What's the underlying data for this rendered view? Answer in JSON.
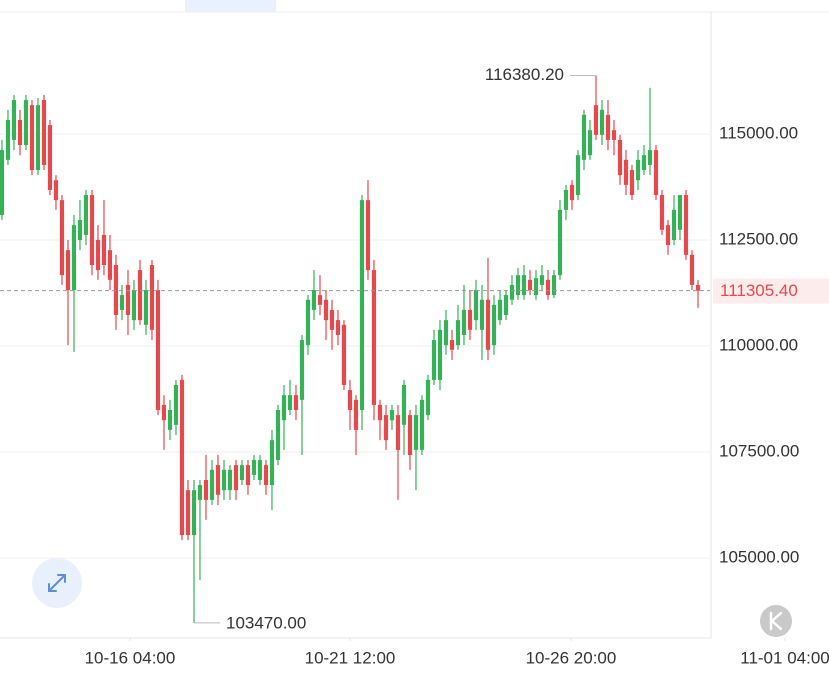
{
  "chart_data": {
    "type": "candlestick",
    "up_color": "#35b158",
    "down_color": "#e5484d",
    "ylim": [
      103113,
      117877
    ],
    "yticks": [
      {
        "value": 105000,
        "label": "105000.00"
      },
      {
        "value": 107500,
        "label": "107500.00"
      },
      {
        "value": 110000,
        "label": "110000.00"
      },
      {
        "value": 112500,
        "label": "112500.00"
      },
      {
        "value": 115000,
        "label": "115000.00"
      }
    ],
    "xlim": [
      -0.33,
      118
    ],
    "xticks": [
      {
        "value": 21.33,
        "label": "10-16 04:00"
      },
      {
        "value": 58,
        "label": "10-21 12:00"
      },
      {
        "value": 94.83,
        "label": "10-26 20:00"
      },
      {
        "value": 130.5,
        "label": "11-01 04:00"
      }
    ],
    "grid": true,
    "max_label": {
      "value": 116380.2,
      "label": "116380.20"
    },
    "min_label": {
      "value": 103470,
      "label": "103470.00"
    },
    "last_price": {
      "value": 111305.4,
      "label": "111305.40"
    },
    "ohlc": [
      [
        113090,
        114860,
        112970,
        114620
      ],
      [
        114390,
        115570,
        114270,
        115330
      ],
      [
        114860,
        115920,
        114620,
        115800
      ],
      [
        115330,
        115570,
        114500,
        114740
      ],
      [
        114740,
        115920,
        114620,
        115800
      ],
      [
        115680,
        115800,
        114030,
        114150
      ],
      [
        114150,
        115850,
        114030,
        115680
      ],
      [
        115800,
        115920,
        114150,
        114270
      ],
      [
        115210,
        115330,
        113560,
        113680
      ],
      [
        113910,
        114030,
        113210,
        113440
      ],
      [
        113440,
        113560,
        111440,
        111670
      ],
      [
        112260,
        112500,
        110020,
        111320
      ],
      [
        111320,
        113090,
        109860,
        112850
      ],
      [
        112500,
        113440,
        112260,
        112970
      ],
      [
        112620,
        113680,
        112380,
        113560
      ],
      [
        113560,
        113680,
        111670,
        111910
      ],
      [
        112500,
        112850,
        111560,
        111790
      ],
      [
        112620,
        113440,
        111670,
        111910
      ],
      [
        112260,
        112620,
        111320,
        111560
      ],
      [
        111910,
        112150,
        110380,
        110730
      ],
      [
        110850,
        111440,
        110610,
        111200
      ],
      [
        111440,
        111790,
        110260,
        110730
      ],
      [
        110610,
        111560,
        110380,
        111320
      ],
      [
        111790,
        112030,
        110500,
        110610
      ],
      [
        110500,
        111560,
        110260,
        111320
      ],
      [
        111910,
        112030,
        110140,
        110380
      ],
      [
        111320,
        111560,
        108370,
        108490
      ],
      [
        108610,
        108840,
        107550,
        108250
      ],
      [
        108020,
        108730,
        107780,
        108490
      ],
      [
        108140,
        109200,
        107900,
        109080
      ],
      [
        109200,
        109320,
        105420,
        105540
      ],
      [
        106600,
        106840,
        105420,
        105540
      ],
      [
        105540,
        106840,
        103470,
        106600
      ],
      [
        106370,
        106840,
        104480,
        106720
      ],
      [
        106840,
        107430,
        105900,
        106370
      ],
      [
        106370,
        107310,
        106250,
        107080
      ],
      [
        107190,
        107430,
        106250,
        106490
      ],
      [
        106600,
        107310,
        106370,
        107080
      ],
      [
        106600,
        107190,
        106370,
        107080
      ],
      [
        107190,
        107310,
        106370,
        106600
      ],
      [
        106840,
        107310,
        106720,
        107190
      ],
      [
        107190,
        107310,
        106490,
        106720
      ],
      [
        106960,
        107430,
        106840,
        107310
      ],
      [
        106840,
        107430,
        106720,
        107310
      ],
      [
        107190,
        107310,
        106490,
        106720
      ],
      [
        106720,
        108020,
        106130,
        107780
      ],
      [
        107310,
        108610,
        107190,
        108490
      ],
      [
        108250,
        109080,
        107550,
        108840
      ],
      [
        108490,
        109200,
        108370,
        108840
      ],
      [
        108840,
        109080,
        108250,
        108490
      ],
      [
        108730,
        110260,
        107430,
        110140
      ],
      [
        110020,
        111200,
        109790,
        111090
      ],
      [
        110850,
        111790,
        110610,
        111320
      ],
      [
        111200,
        111670,
        110730,
        110970
      ],
      [
        111090,
        111320,
        110140,
        110610
      ],
      [
        110850,
        111090,
        109910,
        110380
      ],
      [
        110610,
        110850,
        110020,
        110260
      ],
      [
        110500,
        110610,
        108960,
        109080
      ],
      [
        108960,
        109200,
        108020,
        108490
      ],
      [
        108730,
        108840,
        107430,
        108020
      ],
      [
        108490,
        113560,
        108020,
        113440
      ],
      [
        113440,
        113910,
        111560,
        111790
      ],
      [
        111790,
        112030,
        108250,
        108610
      ],
      [
        108610,
        108730,
        107780,
        108250
      ],
      [
        108370,
        108610,
        107550,
        107780
      ],
      [
        108250,
        108610,
        108020,
        108490
      ],
      [
        108370,
        108610,
        106370,
        107550
      ],
      [
        108140,
        109200,
        107430,
        109080
      ],
      [
        108370,
        108490,
        107080,
        107430
      ],
      [
        107550,
        108610,
        106600,
        108370
      ],
      [
        107550,
        108840,
        107430,
        108730
      ],
      [
        108370,
        109320,
        108250,
        109200
      ],
      [
        109200,
        110380,
        109080,
        110140
      ],
      [
        109200,
        110610,
        108960,
        110380
      ],
      [
        110020,
        110850,
        109790,
        110610
      ],
      [
        110140,
        110380,
        109670,
        109910
      ],
      [
        110020,
        110970,
        109910,
        110610
      ],
      [
        110260,
        111440,
        110020,
        110850
      ],
      [
        110850,
        111320,
        110140,
        110380
      ],
      [
        110610,
        111560,
        110380,
        111320
      ],
      [
        110380,
        111440,
        109670,
        111090
      ],
      [
        111090,
        112080,
        109670,
        109910
      ],
      [
        110020,
        111200,
        109790,
        110970
      ],
      [
        110610,
        111320,
        110500,
        111090
      ],
      [
        110730,
        111320,
        110610,
        111200
      ],
      [
        111090,
        111670,
        110970,
        111440
      ],
      [
        111200,
        111840,
        111090,
        111670
      ],
      [
        111200,
        111910,
        111090,
        111670
      ],
      [
        111560,
        111790,
        111200,
        111320
      ],
      [
        111200,
        111790,
        111090,
        111600
      ],
      [
        111440,
        111910,
        111320,
        111670
      ],
      [
        111560,
        111790,
        111090,
        111200
      ],
      [
        111200,
        111790,
        111130,
        111670
      ],
      [
        111670,
        113440,
        111560,
        113210
      ],
      [
        113210,
        113800,
        112970,
        113680
      ],
      [
        113800,
        113910,
        113210,
        113440
      ],
      [
        113560,
        114620,
        113440,
        114500
      ],
      [
        114390,
        115570,
        114150,
        115450
      ],
      [
        114500,
        115330,
        114390,
        115090
      ],
      [
        115680,
        116380.2,
        114860,
        114980
      ],
      [
        114980,
        115800,
        114740,
        115570
      ],
      [
        115450,
        115800,
        114620,
        114860
      ],
      [
        115090,
        115330,
        114500,
        114860
      ],
      [
        114860,
        114980,
        113800,
        114030
      ],
      [
        114390,
        114620,
        113560,
        113800
      ],
      [
        114150,
        114270,
        113440,
        113560
      ],
      [
        113910,
        114620,
        113680,
        114390
      ],
      [
        114150,
        114740,
        114030,
        114500
      ],
      [
        114270,
        116090,
        114030,
        114620
      ],
      [
        114620,
        114740,
        113440,
        113560
      ],
      [
        113560,
        113680,
        112620,
        112740
      ],
      [
        112850,
        112970,
        112150,
        112380
      ],
      [
        112500,
        113560,
        112380,
        113210
      ],
      [
        112740,
        113560,
        112500,
        113560
      ],
      [
        113560,
        113680,
        112030,
        112150
      ],
      [
        112150,
        112260,
        111320,
        111440
      ],
      [
        111440,
        111560,
        110900,
        111305.4
      ]
    ]
  }
}
